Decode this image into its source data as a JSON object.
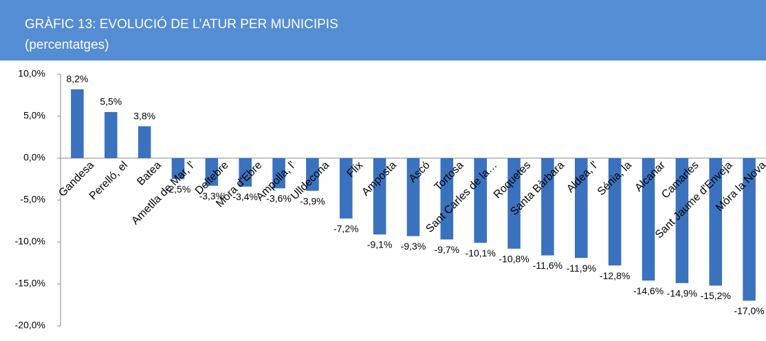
{
  "chart_data": {
    "type": "bar",
    "title": "GRÀFIC 13: EVOLUCIÓ DE L’ATUR PER MUNICIPIS",
    "subtitle": "(percentatges)",
    "categories": [
      "Gandesa",
      "Perelló, el",
      "Batea",
      "Ametlla de Mar, l'",
      "Deltebre",
      "Móra d'Ebre",
      "Ampolla, l'",
      "Ulldecona",
      "Flix",
      "Amposta",
      "Ascó",
      "Tortosa",
      "Sant Carles de la…",
      "Roquetes",
      "Santa Bàrbara",
      "Aldea, l'",
      "Sénia, la",
      "Alcanar",
      "Camarles",
      "Sant Jaume d'Enveja",
      "Móra la Nova"
    ],
    "values": [
      8.2,
      5.5,
      3.8,
      -2.5,
      -3.3,
      -3.4,
      -3.6,
      -3.9,
      -7.2,
      -9.1,
      -9.3,
      -9.7,
      -10.1,
      -10.8,
      -11.6,
      -11.9,
      -12.8,
      -14.6,
      -14.9,
      -15.2,
      -17.0
    ],
    "value_labels": [
      "8,2%",
      "5,5%",
      "3,8%",
      "-2,5%",
      "-3,3%",
      "-3,4%",
      "-3,6%",
      "-3,9%",
      "-7,2%",
      "-9,1%",
      "-9,3%",
      "-9,7%",
      "-10,1%",
      "-10,8%",
      "-11,6%",
      "-11,9%",
      "-12,8%",
      "-14,6%",
      "-14,9%",
      "-15,2%",
      "-17,0%"
    ],
    "color": "#3a72be",
    "ylim": [
      -20,
      10
    ],
    "yticks": [
      {
        "value": -20,
        "label": "-20,0%"
      },
      {
        "value": -15,
        "label": "-15,0%"
      },
      {
        "value": -10,
        "label": "-10,0%"
      },
      {
        "value": -5,
        "label": "-5,0%"
      },
      {
        "value": 0,
        "label": "0,0%"
      },
      {
        "value": 5,
        "label": "5,0%"
      },
      {
        "value": 10,
        "label": "10,0%"
      }
    ]
  }
}
